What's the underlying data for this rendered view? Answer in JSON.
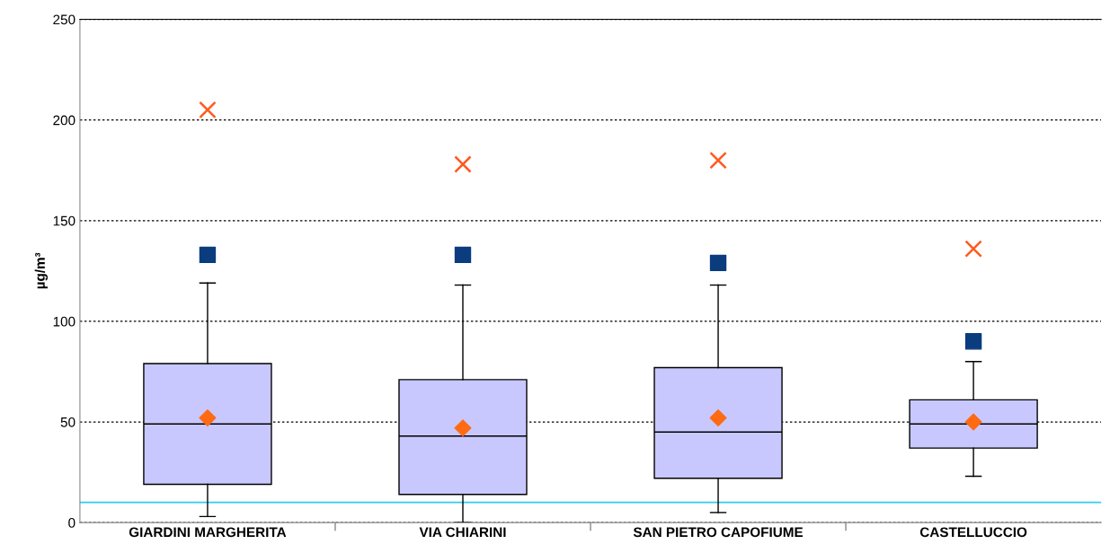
{
  "chart_data": {
    "type": "box",
    "ylabel": "µg/m³",
    "categories": [
      "GIARDINI MARGHERITA",
      "VIA CHIARINI",
      "SAN PIETRO CAPOFIUME",
      "CASTELLUCCIO"
    ],
    "series": [
      {
        "color": "#c8c8ff",
        "boxes": [
          {
            "low": 3,
            "q1": 19,
            "median": 49,
            "q3": 79,
            "high": 119
          },
          {
            "low": 0,
            "q1": 14,
            "median": 43,
            "q3": 71,
            "high": 118
          },
          {
            "low": 5,
            "q1": 22,
            "median": 45,
            "q3": 77,
            "high": 118
          },
          {
            "low": 23,
            "q1": 37,
            "median": 49,
            "q3": 61,
            "high": 80
          }
        ]
      },
      {
        "type": "scatter",
        "marker": "diamond",
        "color": "#ff6a13",
        "x": [
          "GIARDINI MARGHERITA",
          "VIA CHIARINI",
          "SAN PIETRO CAPOFIUME",
          "CASTELLUCCIO"
        ],
        "values": [
          52,
          47,
          52,
          50
        ]
      },
      {
        "type": "scatter",
        "marker": "square",
        "color": "#0b3d7e",
        "x": [
          "GIARDINI MARGHERITA",
          "VIA CHIARINI",
          "SAN PIETRO CAPOFIUME",
          "CASTELLUCCIO"
        ],
        "values": [
          133,
          133,
          129,
          90
        ]
      },
      {
        "type": "scatter",
        "marker": "cross",
        "color": "#ff5a1f",
        "x": [
          "GIARDINI MARGHERITA",
          "VIA CHIARINI",
          "SAN PIETRO CAPOFIUME",
          "CASTELLUCCIO"
        ],
        "values": [
          205,
          178,
          180,
          136
        ]
      }
    ],
    "ylim": [
      0,
      250
    ],
    "yticks": [
      0,
      50,
      100,
      150,
      200,
      250
    ],
    "grid": "y",
    "ref_lines": [
      {
        "axis": "y",
        "value": 10,
        "color": "#33ccee"
      }
    ]
  }
}
